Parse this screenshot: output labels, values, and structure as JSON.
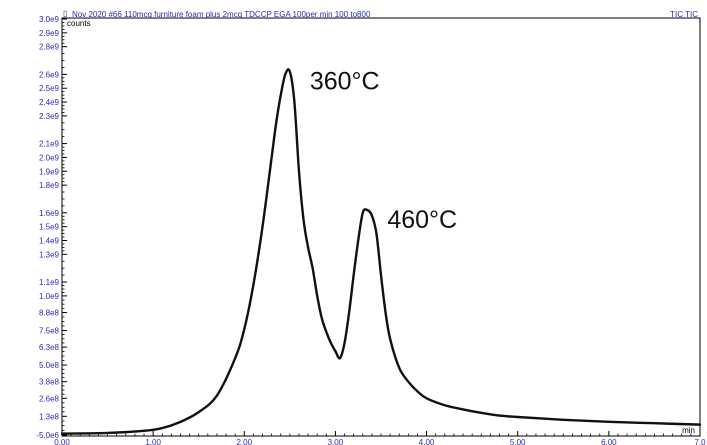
{
  "header": {
    "title": "Nov 2020 #66  110mcg furniture foam plus 2mcg TDCCP EGA 100per min 100 to800",
    "trace_label": "TIC TIC"
  },
  "colors": {
    "trace": "#111111",
    "axis": "#000000",
    "labels": "#2b2bb8"
  },
  "chart_data": {
    "type": "line",
    "ylabel": "counts",
    "xlabel": "min",
    "xlim": [
      0.0,
      7.0
    ],
    "ylim": [
      -5000000.0,
      3000000000.0
    ],
    "y_ticks": [
      -5000000.0,
      130000000.0,
      260000000.0,
      380000000.0,
      500000000.0,
      630000000.0,
      750000000.0,
      880000000.0,
      1000000000.0,
      1100000000.0,
      1300000000.0,
      1400000000.0,
      1500000000.0,
      1600000000.0,
      1800000000.0,
      1900000000.0,
      2000000000.0,
      2100000000.0,
      2300000000.0,
      2400000000.0,
      2500000000.0,
      2600000000.0,
      2800000000.0,
      2900000000.0,
      3000000000.0
    ],
    "y_tick_labels": [
      "-5.0e6",
      "1.3e8",
      "2.6e8",
      "3.8e8",
      "5.0e8",
      "6.3e8",
      "7.5e8",
      "8.8e8",
      "1.0e9",
      "1.1e9",
      "1.3e9",
      "1.4e9",
      "1.5e9",
      "1.6e9",
      "1.8e9",
      "1.9e9",
      "2.0e9",
      "2.1e9",
      "2.3e9",
      "2.4e9",
      "2.5e9",
      "2.6e9",
      "2.8e9",
      "2.9e9",
      "3.0e9"
    ],
    "x_ticks": [
      0.0,
      1.0,
      2.0,
      3.0,
      4.0,
      5.0,
      6.0,
      7.0
    ],
    "x_tick_labels": [
      "0.00",
      "1.00",
      "2.00",
      "3.00",
      "4.00",
      "5.00",
      "6.00",
      "7.0"
    ],
    "series": [
      {
        "x": [
          0.0,
          0.5,
          0.9,
          1.1,
          1.3,
          1.5,
          1.7,
          1.9,
          2.0,
          2.1,
          2.2,
          2.3,
          2.35,
          2.4,
          2.45,
          2.5,
          2.55,
          2.6,
          2.65,
          2.7,
          2.75,
          2.8,
          2.85,
          2.9,
          2.95,
          3.0,
          3.05,
          3.1,
          3.15,
          3.2,
          3.25,
          3.3,
          3.35,
          3.4,
          3.45,
          3.5,
          3.55,
          3.6,
          3.7,
          3.8,
          3.9,
          4.0,
          4.2,
          4.4,
          4.6,
          4.8,
          5.0,
          5.5,
          6.0,
          6.5,
          7.0
        ],
        "y": [
          5000000.0,
          10000000.0,
          25000000.0,
          45000000.0,
          90000000.0,
          160000000.0,
          280000000.0,
          550000000.0,
          760000000.0,
          1080000000.0,
          1500000000.0,
          2000000000.0,
          2250000000.0,
          2450000000.0,
          2600000000.0,
          2620000000.0,
          2400000000.0,
          1900000000.0,
          1550000000.0,
          1350000000.0,
          1200000000.0,
          1000000000.0,
          840000000.0,
          740000000.0,
          660000000.0,
          600000000.0,
          550000000.0,
          660000000.0,
          880000000.0,
          1150000000.0,
          1400000000.0,
          1600000000.0,
          1620000000.0,
          1580000000.0,
          1450000000.0,
          1150000000.0,
          880000000.0,
          690000000.0,
          480000000.0,
          380000000.0,
          310000000.0,
          260000000.0,
          210000000.0,
          180000000.0,
          155000000.0,
          135000000.0,
          125000000.0,
          105000000.0,
          90000000.0,
          80000000.0,
          70000000.0
        ]
      }
    ],
    "annotations": [
      {
        "text": "360°C",
        "x": 2.5,
        "y": 2620000000.0
      },
      {
        "text": "460°C",
        "x": 3.35,
        "y": 1620000000.0
      }
    ]
  }
}
